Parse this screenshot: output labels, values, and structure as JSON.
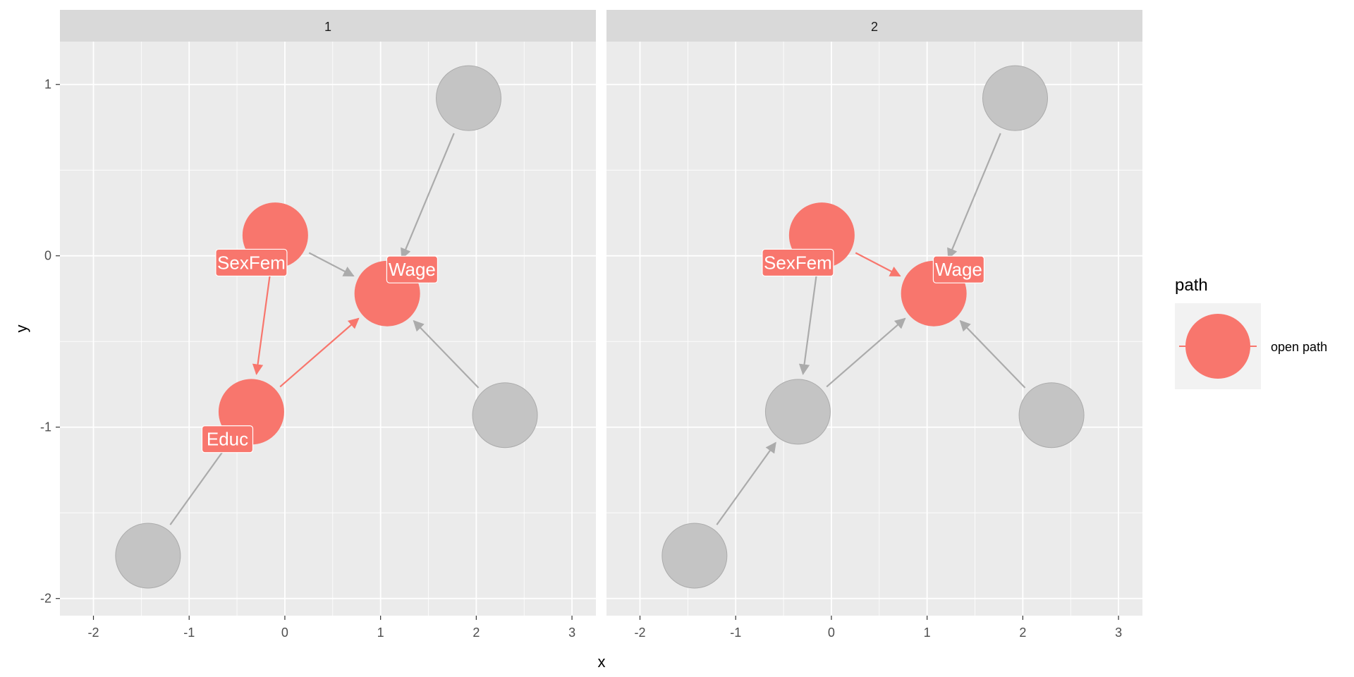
{
  "colors": {
    "open": "#F8766D",
    "closed": "#C4C4C4",
    "closed_edge": "#ABABAB",
    "panel_bg": "#EBEBEB",
    "strip_bg": "#D9D9D9",
    "grid": "#FFFFFF"
  },
  "chart_data": {
    "type": "diagram",
    "xlabel": "x",
    "ylabel": "y",
    "xlim": [
      -2.35,
      3.25
    ],
    "ylim": [
      -2.1,
      1.25
    ],
    "x_ticks": [
      -2,
      -1,
      0,
      1,
      2,
      3
    ],
    "y_ticks": [
      -2,
      -1,
      0,
      1
    ],
    "legend": {
      "title": "path",
      "items": [
        {
          "label": "open path",
          "status": "open"
        }
      ]
    },
    "panels": [
      {
        "strip": "1",
        "nodes": [
          {
            "id": "sexfem",
            "x": -0.1,
            "y": 0.12,
            "status": "open",
            "label": "SexFem",
            "label_x": -0.35,
            "label_y": -0.04
          },
          {
            "id": "wage",
            "x": 1.07,
            "y": -0.22,
            "status": "open",
            "label": "Wage",
            "label_x": 1.33,
            "label_y": -0.08
          },
          {
            "id": "educ",
            "x": -0.35,
            "y": -0.91,
            "status": "open",
            "label": "Educ",
            "label_x": -0.6,
            "label_y": -1.07
          },
          {
            "id": "u_top",
            "x": 1.92,
            "y": 0.92,
            "status": "closed",
            "label": ""
          },
          {
            "id": "u_right",
            "x": 2.3,
            "y": -0.93,
            "status": "closed",
            "label": ""
          },
          {
            "id": "u_bottom",
            "x": -1.43,
            "y": -1.75,
            "status": "closed",
            "label": ""
          }
        ],
        "edges": [
          {
            "from": "sexfem",
            "to": "wage",
            "status": "closed"
          },
          {
            "from": "sexfem",
            "to": "educ",
            "status": "open"
          },
          {
            "from": "educ",
            "to": "wage",
            "status": "open"
          },
          {
            "from": "u_top",
            "to": "wage",
            "status": "closed"
          },
          {
            "from": "u_right",
            "to": "wage",
            "status": "closed"
          },
          {
            "from": "u_bottom",
            "to": "educ",
            "status": "closed",
            "hidden_head": true
          }
        ]
      },
      {
        "strip": "2",
        "nodes": [
          {
            "id": "sexfem",
            "x": -0.1,
            "y": 0.12,
            "status": "open",
            "label": "SexFem",
            "label_x": -0.35,
            "label_y": -0.04
          },
          {
            "id": "wage",
            "x": 1.07,
            "y": -0.22,
            "status": "open",
            "label": "Wage",
            "label_x": 1.33,
            "label_y": -0.08
          },
          {
            "id": "educ",
            "x": -0.35,
            "y": -0.91,
            "status": "closed",
            "label": ""
          },
          {
            "id": "u_top",
            "x": 1.92,
            "y": 0.92,
            "status": "closed",
            "label": ""
          },
          {
            "id": "u_right",
            "x": 2.3,
            "y": -0.93,
            "status": "closed",
            "label": ""
          },
          {
            "id": "u_bottom",
            "x": -1.43,
            "y": -1.75,
            "status": "closed",
            "label": ""
          }
        ],
        "edges": [
          {
            "from": "sexfem",
            "to": "wage",
            "status": "open"
          },
          {
            "from": "sexfem",
            "to": "educ",
            "status": "closed"
          },
          {
            "from": "educ",
            "to": "wage",
            "status": "closed"
          },
          {
            "from": "u_top",
            "to": "wage",
            "status": "closed"
          },
          {
            "from": "u_right",
            "to": "wage",
            "status": "closed"
          },
          {
            "from": "u_bottom",
            "to": "educ",
            "status": "closed"
          }
        ]
      }
    ]
  }
}
